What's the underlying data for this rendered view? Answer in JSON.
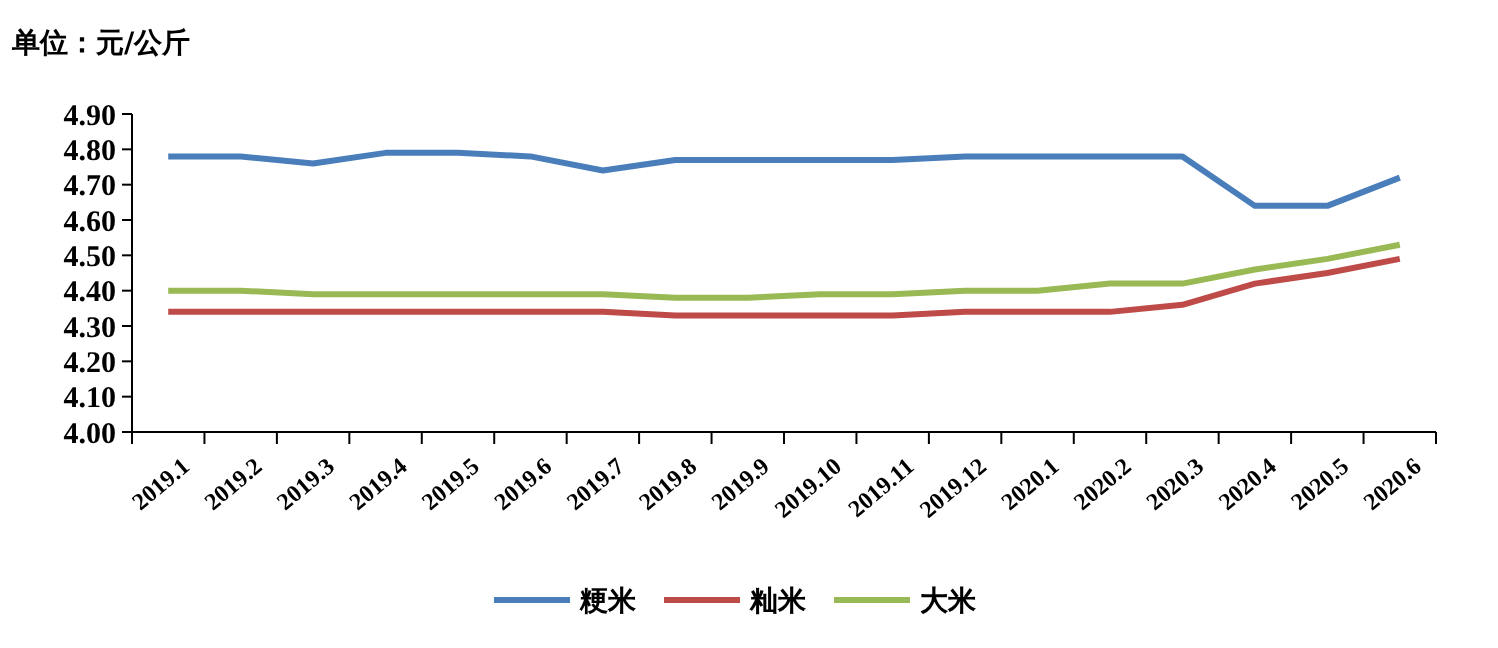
{
  "chart_data": {
    "type": "line",
    "ylabel": "单位：元/公斤",
    "categories": [
      "2019.1",
      "2019.2",
      "2019.3",
      "2019.4",
      "2019.5",
      "2019.6",
      "2019.7",
      "2019.8",
      "2019.9",
      "2019.10",
      "2019.11",
      "2019.12",
      "2020.1",
      "2020.2",
      "2020.3",
      "2020.4",
      "2020.5",
      "2020.6"
    ],
    "series": [
      {
        "name": "粳米",
        "color": "#4a7ebb",
        "values": [
          4.78,
          4.78,
          4.76,
          4.79,
          4.79,
          4.78,
          4.74,
          4.77,
          4.77,
          4.77,
          4.77,
          4.78,
          4.78,
          4.78,
          4.78,
          4.64,
          4.64,
          4.72
        ]
      },
      {
        "name": "籼米",
        "color": "#be4b48",
        "values": [
          4.34,
          4.34,
          4.34,
          4.34,
          4.34,
          4.34,
          4.34,
          4.33,
          4.33,
          4.33,
          4.33,
          4.34,
          4.34,
          4.34,
          4.36,
          4.42,
          4.45,
          4.49
        ]
      },
      {
        "name": "大米",
        "color": "#98b954",
        "values": [
          4.4,
          4.4,
          4.39,
          4.39,
          4.39,
          4.39,
          4.39,
          4.38,
          4.38,
          4.39,
          4.39,
          4.4,
          4.4,
          4.42,
          4.42,
          4.46,
          4.49,
          4.53
        ]
      }
    ],
    "ylim": [
      4.0,
      4.9
    ],
    "yticks": [
      {
        "value": 4.0,
        "label": "4.00"
      },
      {
        "value": 4.1,
        "label": "4.10"
      },
      {
        "value": 4.2,
        "label": "4.20"
      },
      {
        "value": 4.3,
        "label": "4.30"
      },
      {
        "value": 4.4,
        "label": "4.40"
      },
      {
        "value": 4.5,
        "label": "4.50"
      },
      {
        "value": 4.6,
        "label": "4.60"
      },
      {
        "value": 4.7,
        "label": "4.70"
      },
      {
        "value": 4.8,
        "label": "4.80"
      },
      {
        "value": 4.9,
        "label": "4.90"
      }
    ],
    "legend": "bottom",
    "grid": false,
    "marker": "none",
    "line_style": "solid"
  }
}
